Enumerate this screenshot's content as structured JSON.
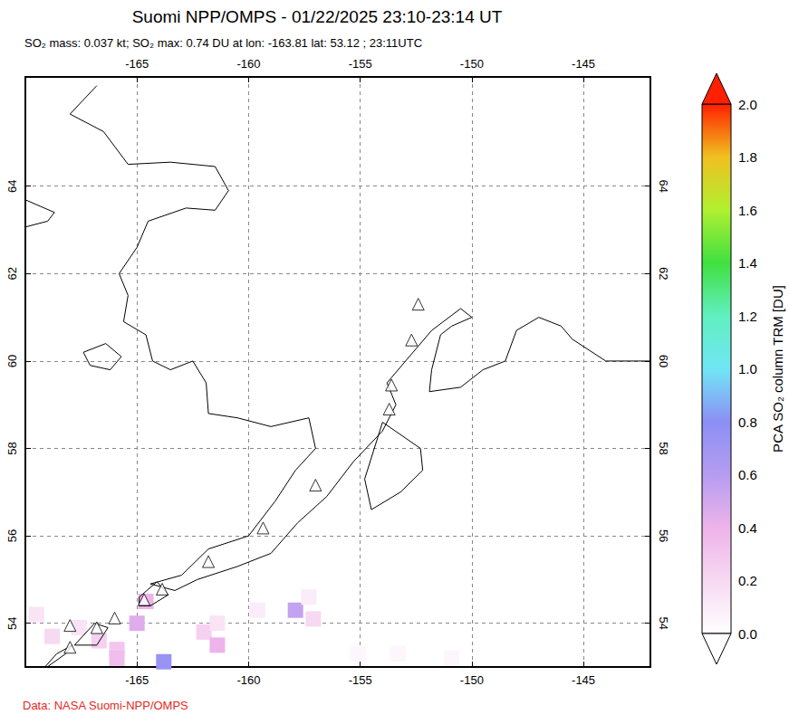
{
  "chart_data": {
    "type": "map",
    "title": "Suomi NPP/OMPS - 01/22/2025 23:10-23:14 UT",
    "subtitle": "SO₂ mass: 0.037 kt; SO₂ max: 0.74 DU at lon: -163.81 lat: 53.12 ; 23:11UTC",
    "footer": "Data: NASA Suomi-NPP/OMPS",
    "xlim": [
      -170,
      -142
    ],
    "xticks": [
      -165,
      -160,
      -155,
      -150,
      -145
    ],
    "ylim": [
      53,
      66.5
    ],
    "yticks": [
      54,
      56,
      58,
      60,
      62,
      64
    ],
    "grid": true,
    "marker": "triangle",
    "coastlines": [
      [
        [
          -166.8,
          66.3
        ],
        [
          -168.0,
          65.65
        ],
        [
          -166.5,
          65.25
        ],
        [
          -165.4,
          64.5
        ],
        [
          -163.5,
          64.55
        ],
        [
          -161.5,
          64.45
        ],
        [
          -160.9,
          63.9
        ],
        [
          -161.5,
          63.45
        ],
        [
          -162.8,
          63.5
        ],
        [
          -164.5,
          63.2
        ],
        [
          -165.0,
          62.6
        ],
        [
          -165.8,
          62.0
        ],
        [
          -165.4,
          61.5
        ],
        [
          -165.6,
          60.9
        ],
        [
          -164.6,
          60.6
        ],
        [
          -164.3,
          60.0
        ],
        [
          -163.5,
          59.8
        ],
        [
          -162.5,
          60.0
        ],
        [
          -161.9,
          59.5
        ],
        [
          -161.8,
          58.8
        ],
        [
          -160.5,
          58.7
        ],
        [
          -159.0,
          58.5
        ],
        [
          -157.3,
          58.7
        ],
        [
          -157.0,
          58.0
        ],
        [
          -157.9,
          57.5
        ],
        [
          -158.8,
          56.8
        ],
        [
          -160.0,
          56.0
        ],
        [
          -161.8,
          55.7
        ],
        [
          -163.0,
          55.1
        ],
        [
          -164.4,
          54.9
        ],
        [
          -163.3,
          54.75
        ],
        [
          -162.3,
          55.0
        ],
        [
          -160.5,
          55.3
        ],
        [
          -159.0,
          55.6
        ],
        [
          -157.8,
          56.3
        ],
        [
          -156.5,
          56.9
        ],
        [
          -155.3,
          57.7
        ],
        [
          -154.0,
          58.4
        ],
        [
          -153.4,
          59.0
        ],
        [
          -153.8,
          59.5
        ],
        [
          -152.8,
          60.1
        ],
        [
          -151.8,
          60.7
        ],
        [
          -150.5,
          61.2
        ],
        [
          -150.0,
          61.0
        ],
        [
          -150.9,
          60.8
        ],
        [
          -151.4,
          60.6
        ],
        [
          -151.8,
          59.8
        ],
        [
          -151.9,
          59.3
        ],
        [
          -150.5,
          59.4
        ],
        [
          -149.5,
          59.8
        ],
        [
          -148.5,
          60.0
        ],
        [
          -148.0,
          60.7
        ],
        [
          -147.0,
          61.0
        ],
        [
          -146.0,
          60.8
        ],
        [
          -145.5,
          60.5
        ],
        [
          -144.0,
          60.0
        ],
        [
          -142.0,
          60.0
        ]
      ],
      [
        [
          -154.0,
          58.6
        ],
        [
          -152.3,
          58.0
        ],
        [
          -152.2,
          57.5
        ],
        [
          -153.2,
          57.0
        ],
        [
          -154.5,
          56.6
        ],
        [
          -154.8,
          57.3
        ],
        [
          -154.0,
          58.6
        ]
      ],
      [
        [
          -167.4,
          60.2
        ],
        [
          -166.4,
          60.4
        ],
        [
          -165.7,
          60.1
        ],
        [
          -166.2,
          59.8
        ],
        [
          -167.1,
          59.9
        ],
        [
          -167.4,
          60.2
        ]
      ],
      [
        [
          -170.5,
          63.0
        ],
        [
          -169.0,
          63.2
        ],
        [
          -168.7,
          63.4
        ],
        [
          -170.5,
          63.8
        ]
      ],
      [
        [
          -164.9,
          54.4
        ],
        [
          -164.4,
          54.4
        ],
        [
          -163.6,
          54.65
        ],
        [
          -164.1,
          54.95
        ],
        [
          -164.9,
          54.6
        ],
        [
          -164.9,
          54.4
        ]
      ],
      [
        [
          -167.8,
          53.5
        ],
        [
          -166.8,
          53.5
        ],
        [
          -166.3,
          53.9
        ],
        [
          -166.9,
          54.0
        ],
        [
          -167.8,
          53.5
        ]
      ],
      [
        [
          -169.3,
          52.9
        ],
        [
          -168.2,
          53.3
        ],
        [
          -167.9,
          53.5
        ],
        [
          -168.6,
          53.3
        ],
        [
          -169.3,
          52.9
        ]
      ]
    ],
    "volcanoes": [
      [
        -168.0,
        53.45
      ],
      [
        -168.0,
        53.95
      ],
      [
        -166.8,
        53.9
      ],
      [
        -166.0,
        54.12
      ],
      [
        -164.68,
        54.54
      ],
      [
        -163.87,
        54.78
      ],
      [
        -161.8,
        55.41
      ],
      [
        -159.35,
        56.18
      ],
      [
        -157.0,
        57.16
      ],
      [
        -153.7,
        58.9
      ],
      [
        -153.6,
        59.45
      ],
      [
        -152.7,
        60.48
      ],
      [
        -152.4,
        61.3
      ]
    ],
    "pixels": [
      [
        -169.5,
        54.2,
        0.15
      ],
      [
        -168.8,
        53.7,
        0.2
      ],
      [
        -167.6,
        53.9,
        0.15
      ],
      [
        -166.7,
        53.6,
        0.25
      ],
      [
        -165.9,
        53.4,
        0.3
      ],
      [
        -165.0,
        54.0,
        0.45
      ],
      [
        -164.6,
        54.5,
        0.4
      ],
      [
        -165.9,
        53.2,
        0.35
      ],
      [
        -163.8,
        53.12,
        0.74
      ],
      [
        -162.0,
        53.8,
        0.25
      ],
      [
        -161.4,
        53.5,
        0.4
      ],
      [
        -161.4,
        54.0,
        0.15
      ],
      [
        -159.6,
        54.3,
        0.1
      ],
      [
        -157.9,
        54.3,
        0.55
      ],
      [
        -157.1,
        54.1,
        0.2
      ],
      [
        -157.3,
        54.6,
        0.1
      ],
      [
        -155.1,
        53.3,
        0.05
      ],
      [
        -153.3,
        53.3,
        0.05
      ],
      [
        -150.9,
        53.2,
        0.05
      ]
    ],
    "colorbar": {
      "label": "PCA SO₂ column TRM [DU]",
      "range": [
        0,
        2
      ],
      "ticks": [
        {
          "value": 0,
          "label": "0.0"
        },
        {
          "value": 0.2,
          "label": "0.2"
        },
        {
          "value": 0.4,
          "label": "0.4"
        },
        {
          "value": 0.6,
          "label": "0.6"
        },
        {
          "value": 0.8,
          "label": "0.8"
        },
        {
          "value": 1,
          "label": "1.0"
        },
        {
          "value": 1.2,
          "label": "1.2"
        },
        {
          "value": 1.4,
          "label": "1.4"
        },
        {
          "value": 1.6,
          "label": "1.6"
        },
        {
          "value": 1.8,
          "label": "1.8"
        },
        {
          "value": 2,
          "label": "2.0"
        }
      ]
    }
  }
}
